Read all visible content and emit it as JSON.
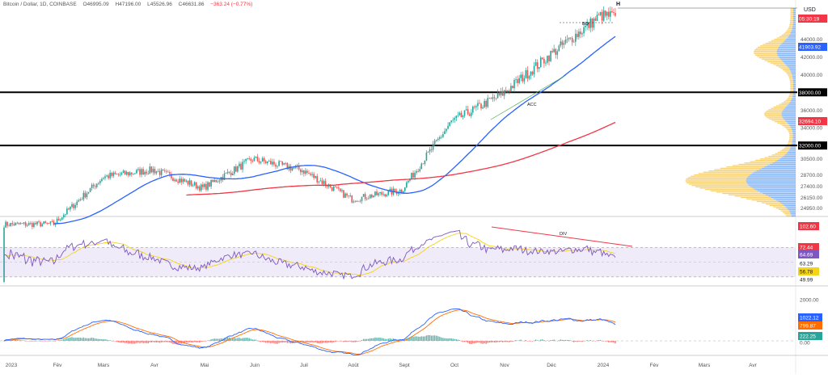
{
  "header": {
    "symbol": "Bitcoin / Dollar, 1D, COINBASE",
    "open": "O46995.09",
    "high": "H47196.00",
    "low": "L45526.96",
    "close": "C46631.86",
    "change": "−363.24 (−0.77%)"
  },
  "currency_label": "USD",
  "chart_data": [
    {
      "type": "candlestick",
      "title": "Bitcoin / Dollar, 1D, COINBASE",
      "x_ticks": [
        "2023",
        "Fév",
        "Mars",
        "Avr",
        "Mai",
        "Juin",
        "Juil",
        "Août",
        "Sept",
        "Oct",
        "Nov",
        "Déc",
        "2024",
        "Fév",
        "Mars",
        "Avr"
      ],
      "y_ticks": [
        24950,
        26150,
        27400,
        28700,
        30500,
        32000,
        34000,
        36000,
        38000,
        40000,
        42000,
        44000
      ],
      "ylim": [
        24000,
        47500
      ],
      "monthly_closes": [
        {
          "x": "2023-01",
          "close": 23100
        },
        {
          "x": "2023-02",
          "close": 23150
        },
        {
          "x": "2023-03",
          "close": 28470
        },
        {
          "x": "2023-04",
          "close": 29250
        },
        {
          "x": "2023-05",
          "close": 27200
        },
        {
          "x": "2023-06",
          "close": 30470
        },
        {
          "x": "2023-07",
          "close": 29230
        },
        {
          "x": "2023-08",
          "close": 25940
        },
        {
          "x": "2023-09",
          "close": 26960
        },
        {
          "x": "2023-10",
          "close": 34660
        },
        {
          "x": "2023-11",
          "close": 37720
        },
        {
          "x": "2023-12",
          "close": 42270
        },
        {
          "x": "2024-01",
          "close": 46631
        }
      ],
      "horizontal_levels": [
        {
          "value": 38000,
          "label": "38000.00",
          "color": "#000000"
        },
        {
          "value": 32000,
          "label": "32000.00",
          "color": "#000000"
        }
      ],
      "price_labels": [
        {
          "text": "05:30:19",
          "color": "#f23645"
        },
        {
          "text": "41903.92",
          "color": "#2962ff"
        },
        {
          "text": "32694.10",
          "color": "#f23645"
        }
      ],
      "annotations": [
        "H",
        "BO",
        "ACC"
      ],
      "series": [
        {
          "name": "MA 50",
          "color": "#2962ff"
        },
        {
          "name": "MA 200",
          "color": "#f23645"
        }
      ]
    },
    {
      "type": "line",
      "name": "RSI",
      "y_ticks": [
        102.6,
        72.44,
        64.69,
        63.29,
        56.78,
        49.99
      ],
      "band": [
        30,
        70
      ],
      "annotations": [
        "DIV"
      ],
      "values_labels": [
        {
          "text": "102.60",
          "color": "#f23645"
        },
        {
          "text": "72.44",
          "color": "#f23645"
        },
        {
          "text": "64.69",
          "color": "#7e57c2"
        },
        {
          "text": "63.29",
          "color": ""
        },
        {
          "text": "56.78",
          "color": "#f5d315"
        },
        {
          "text": "49.99",
          "color": ""
        }
      ]
    },
    {
      "type": "line",
      "name": "MACD",
      "y_ticks": [
        2000,
        1000,
        0
      ],
      "values_labels": [
        {
          "text": "2000.00",
          "color": ""
        },
        {
          "text": "1022.12",
          "color": "#2962ff"
        },
        {
          "text": "799.87",
          "color": "#ff6d00"
        },
        {
          "text": "222.25",
          "color": "#26a69a"
        },
        {
          "text": "0.00",
          "color": ""
        }
      ]
    }
  ],
  "colors": {
    "up": "#26a69a",
    "down": "#ef5350",
    "ma50": "#2962ff",
    "ma200": "#f23645",
    "rsi": "#7e57c2",
    "rsi_ma": "#f5d315",
    "macd": "#2962ff",
    "signal": "#ff6d00",
    "hist_up": "#26a69a",
    "hist_down": "#ef5350",
    "vp_up": "#f5c242",
    "vp_down": "#5b9cf6"
  }
}
